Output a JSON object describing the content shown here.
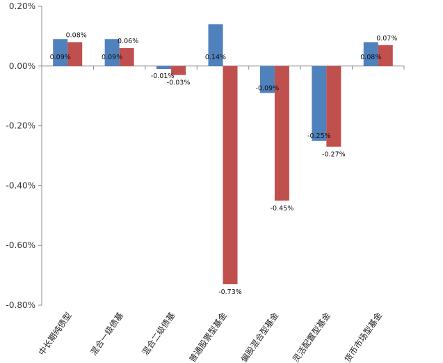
{
  "chart_data": {
    "type": "bar",
    "title": "",
    "xlabel": "",
    "ylabel": "",
    "ylim": [
      -0.8,
      0.2
    ],
    "yticks": [
      0.2,
      0.0,
      -0.2,
      -0.4,
      -0.6,
      -0.8
    ],
    "ytick_labels": [
      "0.20%",
      "0.00%",
      "-0.20%",
      "-0.40%",
      "-0.60%",
      "-0.80%"
    ],
    "categories": [
      "中长期纯债型",
      "混合一级债基",
      "混合二级债基",
      "普通股票型基金",
      "偏股混合型基金",
      "灵活配置型基金",
      "货币市场型基金"
    ],
    "series": [
      {
        "name": "series-1",
        "color": "#4f81bd",
        "values": [
          0.09,
          0.09,
          -0.01,
          0.14,
          -0.09,
          -0.25,
          0.08
        ],
        "labels": [
          "0.09%",
          "0.09%",
          "-0.01%",
          "0.14%",
          "-0.09%",
          "-0.25%",
          "0.08%"
        ]
      },
      {
        "name": "series-2",
        "color": "#c0504d",
        "values": [
          0.08,
          0.06,
          -0.03,
          -0.73,
          -0.45,
          -0.27,
          0.07
        ],
        "labels": [
          "0.08%",
          "0.06%",
          "-0.03%",
          "-0.73%",
          "-0.45%",
          "-0.27%",
          "0.07%"
        ]
      }
    ],
    "grid": false,
    "legend": "none"
  }
}
